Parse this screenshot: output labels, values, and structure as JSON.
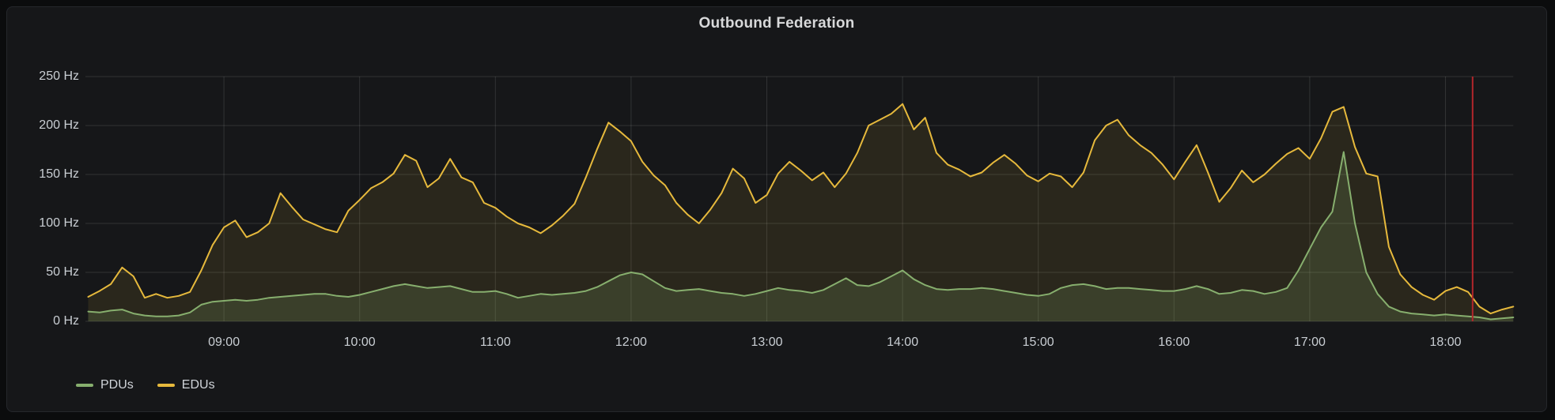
{
  "panel": {
    "title": "Outbound Federation"
  },
  "legend": {
    "items": [
      {
        "label": "PDUs",
        "color": "#87af6e"
      },
      {
        "label": "EDUs",
        "color": "#e6b93c"
      }
    ]
  },
  "colors": {
    "page_background": "#0b0c0d",
    "panel_background": "#161719",
    "panel_border": "#25272b",
    "grid": "rgba(255,255,255,0.12)",
    "tick_text": "#c9ced3",
    "title_text": "#d8d9da",
    "annotation_red": "#b2262b",
    "pdus_green": "#87af6e",
    "edus_yellow": "#e6b93c"
  },
  "chart_data": {
    "type": "line",
    "title": "Outbound Federation",
    "yunit": "Hz",
    "ylim": [
      0,
      250
    ],
    "y_ticks": [
      0,
      50,
      100,
      150,
      200,
      250
    ],
    "y_tick_labels": [
      "0 Hz",
      "50 Hz",
      "100 Hz",
      "150 Hz",
      "200 Hz",
      "250 Hz"
    ],
    "x_tick_labels": [
      "09:00",
      "10:00",
      "11:00",
      "12:00",
      "13:00",
      "14:00",
      "15:00",
      "16:00",
      "17:00",
      "18:00"
    ],
    "x_range": [
      "08:00",
      "18:30"
    ],
    "x_step_minutes": 5,
    "grid": true,
    "legend_position": "bottom-left",
    "annotations": [
      {
        "type": "vline",
        "x": "18:12",
        "color": "#b2262b",
        "label": "annotation"
      }
    ],
    "x": [
      "08:00",
      "08:05",
      "08:10",
      "08:15",
      "08:20",
      "08:25",
      "08:30",
      "08:35",
      "08:40",
      "08:45",
      "08:50",
      "08:55",
      "09:00",
      "09:05",
      "09:10",
      "09:15",
      "09:20",
      "09:25",
      "09:30",
      "09:35",
      "09:40",
      "09:45",
      "09:50",
      "09:55",
      "10:00",
      "10:05",
      "10:10",
      "10:15",
      "10:20",
      "10:25",
      "10:30",
      "10:35",
      "10:40",
      "10:45",
      "10:50",
      "10:55",
      "11:00",
      "11:05",
      "11:10",
      "11:15",
      "11:20",
      "11:25",
      "11:30",
      "11:35",
      "11:40",
      "11:45",
      "11:50",
      "11:55",
      "12:00",
      "12:05",
      "12:10",
      "12:15",
      "12:20",
      "12:25",
      "12:30",
      "12:35",
      "12:40",
      "12:45",
      "12:50",
      "12:55",
      "13:00",
      "13:05",
      "13:10",
      "13:15",
      "13:20",
      "13:25",
      "13:30",
      "13:35",
      "13:40",
      "13:45",
      "13:50",
      "13:55",
      "14:00",
      "14:05",
      "14:10",
      "14:15",
      "14:20",
      "14:25",
      "14:30",
      "14:35",
      "14:40",
      "14:45",
      "14:50",
      "14:55",
      "15:00",
      "15:05",
      "15:10",
      "15:15",
      "15:20",
      "15:25",
      "15:30",
      "15:35",
      "15:40",
      "15:45",
      "15:50",
      "15:55",
      "16:00",
      "16:05",
      "16:10",
      "16:15",
      "16:20",
      "16:25",
      "16:30",
      "16:35",
      "16:40",
      "16:45",
      "16:50",
      "16:55",
      "17:00",
      "17:05",
      "17:10",
      "17:15",
      "17:20",
      "17:25",
      "17:30",
      "17:35",
      "17:40",
      "17:45",
      "17:50",
      "17:55",
      "18:00",
      "18:05",
      "18:10",
      "18:15",
      "18:20",
      "18:25",
      "18:30"
    ],
    "series": [
      {
        "name": "PDUs",
        "color": "#87af6e",
        "fill_opacity": 0.18,
        "values": [
          10,
          9,
          11,
          12,
          8,
          6,
          5,
          5,
          6,
          9,
          17,
          20,
          21,
          22,
          21,
          22,
          24,
          25,
          26,
          27,
          28,
          28,
          26,
          25,
          27,
          30,
          33,
          36,
          38,
          36,
          34,
          35,
          36,
          33,
          30,
          30,
          31,
          28,
          24,
          26,
          28,
          27,
          28,
          29,
          31,
          35,
          41,
          47,
          50,
          48,
          41,
          34,
          31,
          32,
          33,
          31,
          29,
          28,
          26,
          28,
          31,
          34,
          32,
          31,
          29,
          32,
          38,
          44,
          37,
          36,
          40,
          46,
          52,
          43,
          37,
          33,
          32,
          33,
          33,
          34,
          33,
          31,
          29,
          27,
          26,
          28,
          34,
          37,
          38,
          36,
          33,
          34,
          34,
          33,
          32,
          31,
          31,
          33,
          36,
          33,
          28,
          29,
          32,
          31,
          28,
          30,
          34,
          52,
          74,
          96,
          112,
          173,
          100,
          50,
          28,
          15,
          10,
          8,
          7,
          6,
          7,
          6,
          5,
          4,
          2,
          3,
          4
        ]
      },
      {
        "name": "EDUs",
        "color": "#e6b93c",
        "fill_opacity": 0.1,
        "values": [
          25,
          31,
          38,
          55,
          46,
          24,
          28,
          24,
          26,
          30,
          52,
          78,
          96,
          103,
          86,
          91,
          100,
          131,
          117,
          104,
          99,
          94,
          91,
          113,
          124,
          136,
          142,
          151,
          170,
          164,
          137,
          146,
          166,
          147,
          142,
          121,
          116,
          107,
          100,
          96,
          90,
          98,
          108,
          120,
          147,
          176,
          203,
          194,
          184,
          163,
          149,
          139,
          121,
          109,
          100,
          114,
          131,
          156,
          146,
          121,
          129,
          151,
          163,
          154,
          144,
          152,
          137,
          151,
          172,
          200,
          206,
          212,
          222,
          196,
          208,
          172,
          160,
          155,
          148,
          152,
          162,
          170,
          161,
          149,
          143,
          151,
          148,
          137,
          152,
          185,
          200,
          206,
          190,
          180,
          172,
          160,
          145,
          163,
          180,
          152,
          122,
          136,
          154,
          142,
          150,
          161,
          171,
          177,
          166,
          187,
          214,
          219,
          178,
          151,
          148,
          76,
          48,
          35,
          27,
          22,
          31,
          35,
          30,
          15,
          8,
          12,
          15
        ]
      }
    ]
  }
}
